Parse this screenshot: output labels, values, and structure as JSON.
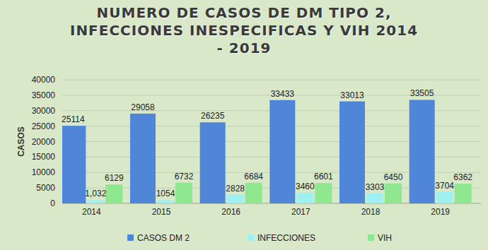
{
  "chart_data": {
    "type": "bar",
    "title": "NUMERO DE CASOS DE DM TIPO 2, INFECCIONES INESPECIFICAS Y VIH  2014 - 2019",
    "y_label": "CASOS",
    "categories": [
      "2014",
      "2015",
      "2016",
      "2017",
      "2018",
      "2019"
    ],
    "series": [
      {
        "name": "CASOS DM 2",
        "color": "#4f86d8",
        "values": [
          25114,
          29058,
          26235,
          33433,
          33013,
          33505
        ]
      },
      {
        "name": "INFECCIONES",
        "color": "#9ff0f0",
        "values": [
          1032,
          1054,
          2828,
          3460,
          3303,
          3704
        ],
        "value_labels": [
          "1,032",
          "1054",
          "2828",
          "3460",
          "3303",
          "3704"
        ]
      },
      {
        "name": "VIH",
        "color": "#8fe88f",
        "values": [
          6129,
          6732,
          6684,
          6601,
          6450,
          6362
        ]
      }
    ],
    "ylim": [
      0,
      40000
    ],
    "yticks": [
      0,
      5000,
      10000,
      15000,
      20000,
      25000,
      30000,
      35000,
      40000
    ],
    "grid": true,
    "data_labels": true,
    "legend": "bottom"
  }
}
